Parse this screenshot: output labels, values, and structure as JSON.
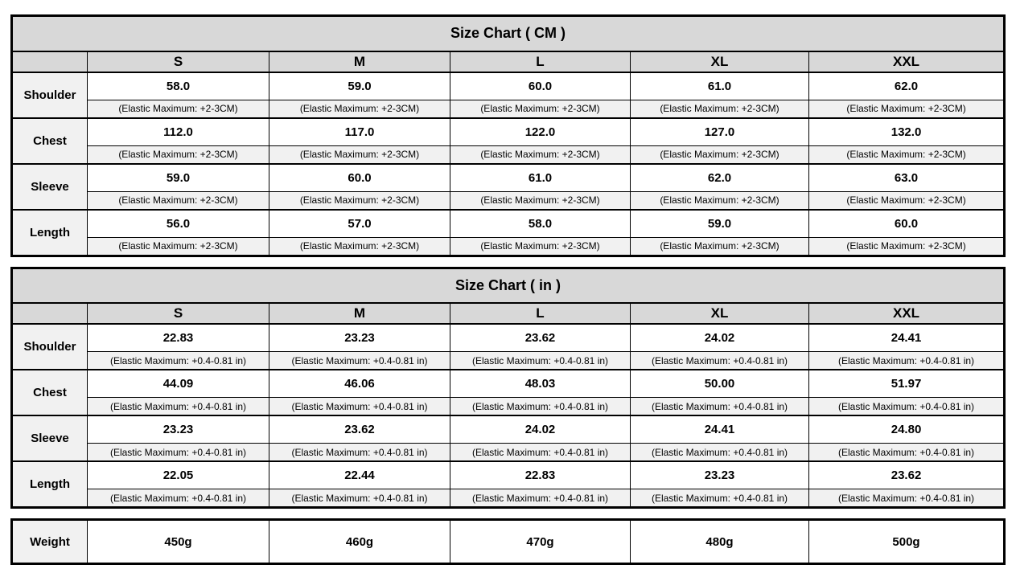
{
  "colors": {
    "header_bg": "#d8d8d8",
    "label_bg": "#f1f1f1",
    "cell_bg": "#ffffff",
    "border": "#000000",
    "text": "#000000"
  },
  "chart_data": [
    {
      "type": "table",
      "title": "Size Chart ( CM )",
      "columns": [
        "S",
        "M",
        "L",
        "XL",
        "XXL"
      ],
      "note": "(Elastic Maximum: +2-3CM)",
      "rows": [
        {
          "label": "Shoulder",
          "values": [
            "58.0",
            "59.0",
            "60.0",
            "61.0",
            "62.0"
          ]
        },
        {
          "label": "Chest",
          "values": [
            "112.0",
            "117.0",
            "122.0",
            "127.0",
            "132.0"
          ]
        },
        {
          "label": "Sleeve",
          "values": [
            "59.0",
            "60.0",
            "61.0",
            "62.0",
            "63.0"
          ]
        },
        {
          "label": "Length",
          "values": [
            "56.0",
            "57.0",
            "58.0",
            "59.0",
            "60.0"
          ]
        }
      ]
    },
    {
      "type": "table",
      "title": "Size Chart ( in )",
      "columns": [
        "S",
        "M",
        "L",
        "XL",
        "XXL"
      ],
      "note": "(Elastic Maximum: +0.4-0.81 in)",
      "rows": [
        {
          "label": "Shoulder",
          "values": [
            "22.83",
            "23.23",
            "23.62",
            "24.02",
            "24.41"
          ]
        },
        {
          "label": "Chest",
          "values": [
            "44.09",
            "46.06",
            "48.03",
            "50.00",
            "51.97"
          ]
        },
        {
          "label": "Sleeve",
          "values": [
            "23.23",
            "23.62",
            "24.02",
            "24.41",
            "24.80"
          ]
        },
        {
          "label": "Length",
          "values": [
            "22.05",
            "22.44",
            "22.83",
            "23.23",
            "23.62"
          ]
        }
      ]
    },
    {
      "type": "table",
      "title": "",
      "columns": [],
      "note": "",
      "rows": [
        {
          "label": "Weight",
          "values": [
            "450g",
            "460g",
            "470g",
            "480g",
            "500g"
          ]
        }
      ]
    }
  ]
}
